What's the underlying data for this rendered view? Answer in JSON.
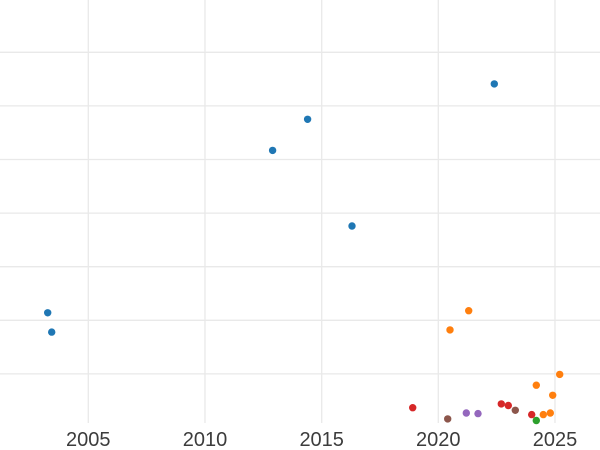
{
  "chart_data": {
    "type": "scatter",
    "title": "",
    "xlabel": "",
    "ylabel": "",
    "x_tick_labels": [
      "2005",
      "2010",
      "2015",
      "2020",
      "2025"
    ],
    "x_tick_values": [
      2005,
      2010,
      2015,
      2020,
      2025
    ],
    "x_range": [
      2001.2,
      2026.9
    ],
    "y_range": [
      -0.45,
      8.0
    ],
    "y_tick_labels": [],
    "y_gridline_units": [
      1,
      2,
      3,
      4,
      5,
      6,
      7
    ],
    "grid": true,
    "legend_position": "none",
    "note": "y-axis tick labels are outside the visible crop; y values are expressed in horizontal-gridline units measured up from the bottom axis",
    "series": [
      {
        "name": "blue",
        "color": "#1f77b4",
        "points": [
          {
            "x": 2003.26,
            "y": 2.14
          },
          {
            "x": 2003.43,
            "y": 1.78
          },
          {
            "x": 2012.9,
            "y": 5.17
          },
          {
            "x": 2014.4,
            "y": 5.75
          },
          {
            "x": 2016.3,
            "y": 3.76
          },
          {
            "x": 2022.4,
            "y": 6.41
          }
        ]
      },
      {
        "name": "red",
        "color": "#d62728",
        "points": [
          {
            "x": 2018.9,
            "y": 0.37
          },
          {
            "x": 2022.7,
            "y": 0.44
          },
          {
            "x": 2023.0,
            "y": 0.41
          },
          {
            "x": 2024.0,
            "y": 0.24
          }
        ]
      },
      {
        "name": "purple",
        "color": "#9467bd",
        "points": [
          {
            "x": 2021.2,
            "y": 0.27
          },
          {
            "x": 2021.7,
            "y": 0.26
          }
        ]
      },
      {
        "name": "brown",
        "color": "#8c564b",
        "points": [
          {
            "x": 2020.4,
            "y": 0.16
          },
          {
            "x": 2023.3,
            "y": 0.32
          }
        ]
      },
      {
        "name": "green",
        "color": "#2ca02c",
        "points": [
          {
            "x": 2024.2,
            "y": 0.13
          }
        ]
      },
      {
        "name": "orange",
        "color": "#ff7f0e",
        "points": [
          {
            "x": 2020.5,
            "y": 1.82
          },
          {
            "x": 2021.3,
            "y": 2.18
          },
          {
            "x": 2024.2,
            "y": 0.79
          },
          {
            "x": 2024.5,
            "y": 0.24
          },
          {
            "x": 2024.8,
            "y": 0.27
          },
          {
            "x": 2024.9,
            "y": 0.6
          },
          {
            "x": 2025.2,
            "y": 0.99
          }
        ]
      }
    ],
    "colors": {
      "background": "#ffffff",
      "grid": "#e9e9e9",
      "tick_label": "#3c3c3c"
    }
  }
}
